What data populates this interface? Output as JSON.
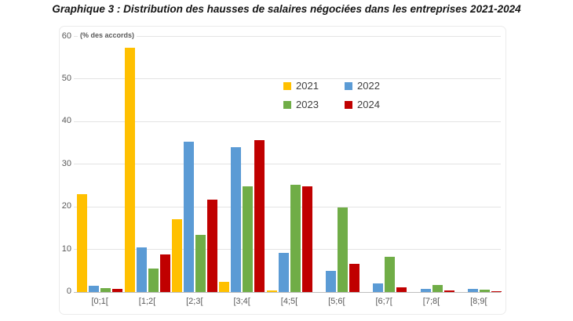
{
  "title": "Graphique 3 : Distribution des hausses de salaires négociées dans les entreprises 2021-2024",
  "axis_note": "(% des accords)",
  "chart_data": {
    "type": "bar",
    "title": "Graphique 3 : Distribution des hausses de salaires négociées dans les entreprises 2021-2024",
    "xlabel": "",
    "ylabel": "(% des accords)",
    "ylim": [
      0,
      60
    ],
    "yticks": [
      0,
      10,
      20,
      30,
      40,
      50,
      60
    ],
    "grid": true,
    "legend_position": "upper-center",
    "categories": [
      "[0;1[",
      "[1;2[",
      "[2;3[",
      "[3;4[",
      "[4;5[",
      "[5;6[",
      "[6;7[",
      "[7;8[",
      "[8;9["
    ],
    "series": [
      {
        "name": "2021",
        "color": "#FFC000",
        "values": [
          23.0,
          57.4,
          17.1,
          2.4,
          0.3,
          0,
          0,
          0,
          0
        ]
      },
      {
        "name": "2022",
        "color": "#5B9BD5",
        "values": [
          1.5,
          10.5,
          35.3,
          34.0,
          9.2,
          5.0,
          2.1,
          0.7,
          0.7
        ]
      },
      {
        "name": "2023",
        "color": "#70AD47",
        "values": [
          1.0,
          5.5,
          13.4,
          24.9,
          25.1,
          19.9,
          8.3,
          1.6,
          0.6
        ]
      },
      {
        "name": "2024",
        "color": "#C00000",
        "values": [
          0.8,
          8.9,
          21.7,
          35.6,
          24.9,
          6.7,
          1.1,
          0.3,
          0.2
        ]
      }
    ]
  }
}
